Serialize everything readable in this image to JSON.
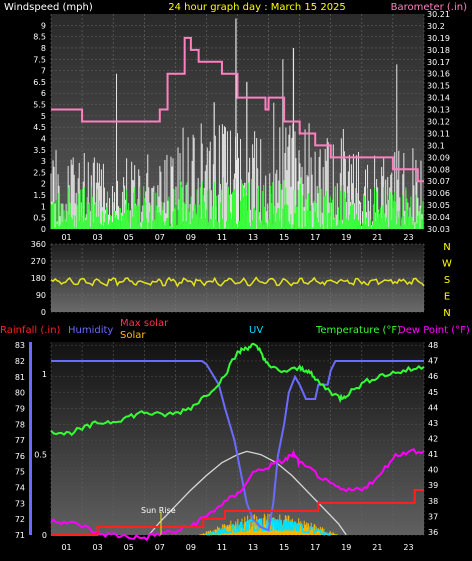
{
  "title": "24 hour graph day : March 15 2025",
  "colors": {
    "title": "#ffff00",
    "wind_label": "#ffffff",
    "barometer": "#ff80c0",
    "gust": "#e6e6e6",
    "wind": "#33ff33",
    "direction": "#e6e61a",
    "rain": "#ff2020",
    "humidity": "#6b6bff",
    "maxsolar": "#ff3050",
    "solar": "#ffc000",
    "uv": "#00e0ff",
    "temp": "#33ff33",
    "dew": "#ff00ff"
  },
  "hour_labels": [
    "01",
    "03",
    "05",
    "07",
    "09",
    "11",
    "13",
    "15",
    "17",
    "19",
    "21",
    "23"
  ],
  "wind_chart": {
    "left_label": "Windspeed (mph)",
    "right_label": "Barometer (.in)",
    "y_ticks": [
      "0",
      "0.5",
      "1",
      "1.5",
      "2",
      "2.5",
      "3",
      "3.5",
      "4",
      "4.5",
      "5",
      "5.5",
      "6",
      "6.5",
      "7",
      "7.5",
      "8",
      "8.5",
      "9"
    ],
    "baro_ticks": [
      "30.03",
      "30.04",
      "30.05",
      "30.06",
      "30.07",
      "30.08",
      "30.09",
      "30.1",
      "30.11",
      "30.12",
      "30.13",
      "30.14",
      "30.15",
      "30.16",
      "30.17",
      "30.18",
      "30.19",
      "30.2",
      "30.21"
    ],
    "ylim": [
      0,
      9.5
    ],
    "baro_lim": [
      30.03,
      30.21
    ],
    "baro_series": [
      [
        0,
        30.13
      ],
      [
        1,
        30.13
      ],
      [
        2,
        30.12
      ],
      [
        3,
        30.12
      ],
      [
        4,
        30.12
      ],
      [
        5,
        30.12
      ],
      [
        6,
        30.12
      ],
      [
        7,
        30.13
      ],
      [
        7.5,
        30.16
      ],
      [
        8,
        30.16
      ],
      [
        8.6,
        30.19
      ],
      [
        9,
        30.18
      ],
      [
        9.5,
        30.17
      ],
      [
        10,
        30.17
      ],
      [
        11,
        30.16
      ],
      [
        12,
        30.14
      ],
      [
        13,
        30.14
      ],
      [
        13.8,
        30.13
      ],
      [
        14,
        30.14
      ],
      [
        15,
        30.12
      ],
      [
        16,
        30.11
      ],
      [
        17,
        30.1
      ],
      [
        18,
        30.09
      ],
      [
        19,
        30.09
      ],
      [
        20,
        30.09
      ],
      [
        21,
        30.09
      ],
      [
        22,
        30.08
      ],
      [
        23,
        30.08
      ],
      [
        23.6,
        30.07
      ],
      [
        24,
        30.07
      ]
    ]
  },
  "direction_chart": {
    "y_ticks": [
      "0",
      "90",
      "180",
      "270",
      "360"
    ],
    "dir_labels": [
      "N",
      "W",
      "S",
      "E",
      "N"
    ],
    "mean_direction": 160
  },
  "main_chart": {
    "labels": {
      "rain": "Rainfall (.in)",
      "humidity": "Humidity",
      "maxsolar": "Max solar",
      "solar": "Solar",
      "uv": "UV",
      "temp": "Temperature (°F)",
      "dew": "Dew Point (°F)"
    },
    "rain_ticks": [
      "0",
      "0.5",
      "1"
    ],
    "humidity_ticks": [
      "71",
      "72",
      "73",
      "74",
      "75",
      "76",
      "77",
      "78",
      "79",
      "80",
      "81",
      "82",
      "83"
    ],
    "temp_ticks": [
      "36",
      "37",
      "38",
      "39",
      "40",
      "41",
      "42",
      "43",
      "44",
      "45",
      "46",
      "47",
      "48"
    ],
    "annotation": "Sun Rise",
    "humidity_lim": [
      71,
      83.2
    ],
    "temp_lim": [
      35.8,
      48.2
    ],
    "rain_lim": [
      0,
      1.2
    ],
    "humidity": [
      [
        0,
        82
      ],
      [
        9.7,
        82
      ],
      [
        10,
        81.8
      ],
      [
        10.8,
        80.5
      ],
      [
        11.2,
        79
      ],
      [
        11.8,
        77
      ],
      [
        12.2,
        75
      ],
      [
        12.6,
        73
      ],
      [
        13,
        72
      ],
      [
        13.5,
        71.5
      ],
      [
        14,
        71.3
      ],
      [
        14.3,
        73
      ],
      [
        14.6,
        76
      ],
      [
        15,
        78
      ],
      [
        15.3,
        80
      ],
      [
        15.7,
        81
      ],
      [
        16,
        80.5
      ],
      [
        16.4,
        79.6
      ],
      [
        17,
        79.6
      ],
      [
        17.2,
        80.5
      ],
      [
        17.8,
        80.5
      ],
      [
        18,
        81.4
      ],
      [
        18.3,
        82
      ],
      [
        24,
        82
      ]
    ],
    "temp": [
      [
        0,
        42.5
      ],
      [
        1,
        42.3
      ],
      [
        2,
        42.6
      ],
      [
        3,
        43
      ],
      [
        4,
        43.1
      ],
      [
        5,
        43.4
      ],
      [
        6,
        43.7
      ],
      [
        7,
        43.5
      ],
      [
        8,
        43.6
      ],
      [
        9,
        44
      ],
      [
        10,
        44.8
      ],
      [
        11,
        45.8
      ],
      [
        12,
        47.5
      ],
      [
        12.5,
        47.8
      ],
      [
        13,
        48
      ],
      [
        13.5,
        47.6
      ],
      [
        14,
        46.6
      ],
      [
        15,
        46.3
      ],
      [
        16,
        46.5
      ],
      [
        16.5,
        46.4
      ],
      [
        17,
        45.8
      ],
      [
        18,
        45
      ],
      [
        18.6,
        44.6
      ],
      [
        19,
        44.8
      ],
      [
        20,
        45.5
      ],
      [
        21,
        46
      ],
      [
        22,
        46.2
      ],
      [
        23,
        46.4
      ],
      [
        24,
        46.6
      ]
    ],
    "dew": [
      [
        0,
        36.8
      ],
      [
        1,
        36.6
      ],
      [
        2,
        36.4
      ],
      [
        3,
        35.9
      ],
      [
        4,
        35.8
      ],
      [
        5,
        35.7
      ],
      [
        6,
        35.6
      ],
      [
        7,
        35.9
      ],
      [
        8,
        36
      ],
      [
        9,
        36.4
      ],
      [
        10,
        37
      ],
      [
        11,
        37.8
      ],
      [
        12,
        38.4
      ],
      [
        13,
        39.8
      ],
      [
        14,
        40.2
      ],
      [
        15,
        40.6
      ],
      [
        15.6,
        41
      ],
      [
        16,
        40.4
      ],
      [
        17,
        39.8
      ],
      [
        18,
        39
      ],
      [
        19,
        38.6
      ],
      [
        20,
        38.8
      ],
      [
        21,
        39.4
      ],
      [
        22,
        40.8
      ],
      [
        23,
        41.2
      ],
      [
        24,
        41.2
      ]
    ],
    "rain": [
      [
        0,
        0
      ],
      [
        3,
        0
      ],
      [
        3,
        0.05
      ],
      [
        9.8,
        0.05
      ],
      [
        9.8,
        0.1
      ],
      [
        11.2,
        0.1
      ],
      [
        11.2,
        0.15
      ],
      [
        17.2,
        0.15
      ],
      [
        17.2,
        0.2
      ],
      [
        23.4,
        0.2
      ],
      [
        23.4,
        0.28
      ],
      [
        24,
        0.28
      ]
    ],
    "maxsolar": [
      [
        6.3,
        0
      ],
      [
        7,
        0.08
      ],
      [
        8,
        0.18
      ],
      [
        9,
        0.28
      ],
      [
        10,
        0.37
      ],
      [
        11,
        0.45
      ],
      [
        12,
        0.5
      ],
      [
        12.6,
        0.52
      ],
      [
        13.5,
        0.5
      ],
      [
        14.5,
        0.45
      ],
      [
        15.5,
        0.37
      ],
      [
        16.5,
        0.27
      ],
      [
        17.5,
        0.17
      ],
      [
        18.5,
        0.07
      ],
      [
        19,
        0
      ]
    ],
    "solar_peak": 0.12
  }
}
